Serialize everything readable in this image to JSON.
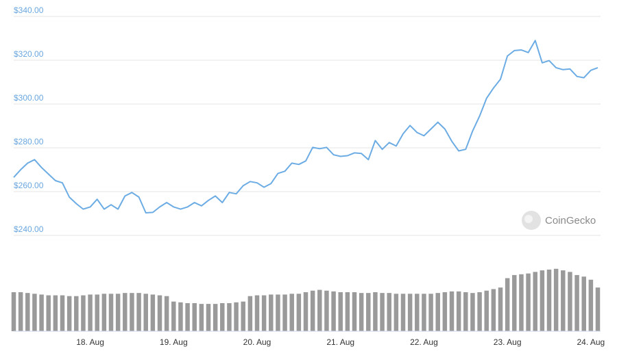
{
  "chart_data": {
    "type": "line",
    "categories": [
      null,
      null,
      null,
      null,
      null,
      null,
      null,
      null,
      null,
      null,
      null,
      "18. Aug",
      null,
      null,
      null,
      null,
      null,
      null,
      null,
      null,
      null,
      null,
      null,
      "19. Aug",
      null,
      null,
      null,
      null,
      null,
      null,
      null,
      null,
      null,
      null,
      null,
      "20. Aug",
      null,
      null,
      null,
      null,
      null,
      null,
      null,
      null,
      null,
      null,
      null,
      "21. Aug",
      null,
      null,
      null,
      null,
      null,
      null,
      null,
      null,
      null,
      null,
      null,
      "22. Aug",
      null,
      null,
      null,
      null,
      null,
      null,
      null,
      null,
      null,
      null,
      null,
      "23. Aug",
      null,
      null,
      null,
      null,
      null,
      null,
      null,
      null,
      null,
      null,
      null,
      "24. Aug",
      null
    ],
    "series": [
      {
        "type": "line",
        "color": "#6cace4",
        "values": [
          266.5,
          270,
          273,
          274.6,
          271,
          268,
          265,
          264,
          257.5,
          254.5,
          252,
          253,
          256.5,
          252,
          254,
          252,
          258,
          259.6,
          257.5,
          250.3,
          250.5,
          253,
          255,
          253,
          252,
          253,
          255,
          253.5,
          256,
          258,
          255,
          259.6,
          259,
          262.7,
          264.6,
          264,
          262,
          263.7,
          268.3,
          269.3,
          273,
          272.4,
          274,
          280.2,
          279.6,
          280.2,
          276.8,
          276.1,
          276.4,
          277.7,
          277.4,
          274.6,
          283.3,
          279.3,
          282.4,
          280.8,
          286.4,
          290.2,
          287,
          285.5,
          288.6,
          291.7,
          288.6,
          283,
          278.6,
          279.3,
          287.7,
          294.5,
          302.6,
          307.3,
          311.3,
          321.9,
          324.4,
          324.7,
          323.5,
          329,
          318.8,
          319.8,
          316.6,
          315.7,
          316,
          312.6,
          312,
          315.4,
          316.6
        ]
      },
      {
        "type": "bar",
        "axis": "y2",
        "color": "#9a9a9a",
        "values": [
          50,
          50,
          49,
          48,
          47,
          46,
          46,
          46,
          45,
          45,
          46,
          47,
          47,
          48,
          48,
          48,
          49,
          49,
          49,
          48,
          47,
          46,
          45,
          38,
          37,
          36,
          36,
          35,
          35,
          35,
          36,
          36,
          37,
          38,
          45,
          46,
          46,
          47,
          47,
          47,
          48,
          48,
          50,
          52,
          53,
          52,
          51,
          50,
          50,
          50,
          49,
          49,
          50,
          49,
          49,
          48,
          48,
          48,
          48,
          48,
          48,
          49,
          50,
          51,
          51,
          50,
          49,
          50,
          52,
          54,
          56,
          68,
          72,
          73,
          74,
          76,
          78,
          79,
          80,
          78,
          76,
          72,
          70,
          66,
          56
        ]
      }
    ],
    "ylim": [
      240,
      340
    ],
    "yticks": [
      {
        "value": 240,
        "label": "$240.00"
      },
      {
        "value": 260,
        "label": "$260.00"
      },
      {
        "value": 280,
        "label": "$280.00"
      },
      {
        "value": 300,
        "label": "$300.00"
      },
      {
        "value": 320,
        "label": "$320.00"
      },
      {
        "value": 340,
        "label": "$340.00"
      }
    ],
    "y2lim": [
      0,
      100
    ],
    "grid": true,
    "watermark": "CoinGecko"
  }
}
